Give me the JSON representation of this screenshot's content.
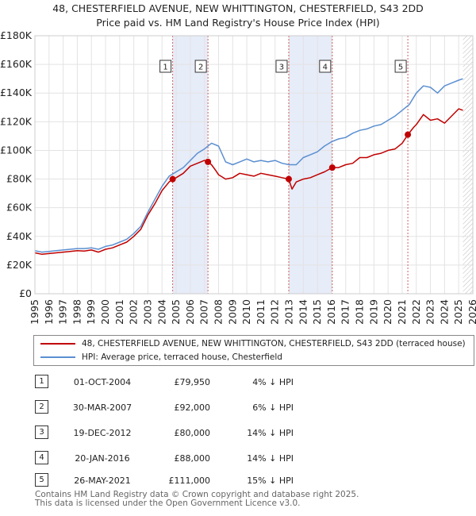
{
  "title_line1": "48, CHESTERFIELD AVENUE, NEW WHITTINGTON, CHESTERFIELD, S43 2DD",
  "title_line2": "Price paid vs. HM Land Registry's House Price Index (HPI)",
  "colors": {
    "property": "#c00000",
    "hpi": "#5b8fd1",
    "highlight": "#e6ecf8",
    "marker_line": "#d06060"
  },
  "chart_data": {
    "type": "line",
    "y_tick_labels": [
      "£0",
      "£20K",
      "£40K",
      "£60K",
      "£80K",
      "£100K",
      "£120K",
      "£140K",
      "£160K",
      "£180K"
    ],
    "y_ticks": [
      0,
      20000,
      40000,
      60000,
      80000,
      100000,
      120000,
      140000,
      160000,
      180000
    ],
    "ylim": [
      0,
      180000
    ],
    "xlim": [
      1995,
      2026
    ],
    "x_ticks": [
      "1995",
      "1996",
      "1997",
      "1998",
      "1999",
      "2000",
      "2001",
      "2002",
      "2003",
      "2004",
      "2005",
      "2006",
      "2007",
      "2008",
      "2009",
      "2010",
      "2011",
      "2012",
      "2013",
      "2014",
      "2015",
      "2016",
      "2017",
      "2018",
      "2019",
      "2020",
      "2021",
      "2022",
      "2023",
      "2024",
      "2025",
      "2026"
    ],
    "shaded_ranges": [
      [
        2004.75,
        2007.25
      ],
      [
        2012.97,
        2016.05
      ]
    ],
    "hatched_from": 2025.3,
    "series": [
      {
        "name": "48, CHESTERFIELD AVENUE, NEW WHITTINGTON, CHESTERFIELD, S43 2DD (terraced house)",
        "x": [
          1995.0,
          1995.5,
          1996.0,
          1996.5,
          1997.0,
          1997.5,
          1998.0,
          1998.5,
          1999.0,
          1999.5,
          2000.0,
          2000.5,
          2001.0,
          2001.5,
          2002.0,
          2002.5,
          2003.0,
          2003.5,
          2004.0,
          2004.5,
          2004.75,
          2005.0,
          2005.5,
          2006.0,
          2006.5,
          2007.0,
          2007.25,
          2007.5,
          2007.8,
          2008.0,
          2008.5,
          2009.0,
          2009.5,
          2010.0,
          2010.5,
          2011.0,
          2011.5,
          2012.0,
          2012.5,
          2012.97,
          2013.2,
          2013.5,
          2014.0,
          2014.5,
          2015.0,
          2015.5,
          2016.05,
          2016.5,
          2017.0,
          2017.5,
          2018.0,
          2018.5,
          2019.0,
          2019.5,
          2020.0,
          2020.5,
          2021.0,
          2021.4,
          2021.8,
          2022.0,
          2022.5,
          2023.0,
          2023.5,
          2024.0,
          2024.5,
          2025.0,
          2025.3
        ],
        "values": [
          28500,
          27500,
          28000,
          28500,
          29000,
          29500,
          30000,
          29800,
          30500,
          29000,
          31000,
          32000,
          34000,
          36000,
          40000,
          45000,
          55000,
          63000,
          72000,
          78000,
          79950,
          81000,
          84000,
          89000,
          91000,
          93000,
          92000,
          90000,
          86000,
          83000,
          80000,
          81000,
          84000,
          83000,
          82000,
          84000,
          83000,
          82000,
          81000,
          80000,
          73000,
          78000,
          80000,
          81000,
          83000,
          85000,
          88000,
          88000,
          90000,
          91000,
          95000,
          95000,
          97000,
          98000,
          100000,
          101000,
          105000,
          111000,
          116000,
          118000,
          125000,
          121000,
          122000,
          119000,
          124000,
          129000,
          128000
        ]
      },
      {
        "name": "HPI: Average price, terraced house, Chesterfield",
        "x": [
          1995.0,
          1995.5,
          1996.0,
          1996.5,
          1997.0,
          1997.5,
          1998.0,
          1998.5,
          1999.0,
          1999.5,
          2000.0,
          2000.5,
          2001.0,
          2001.5,
          2002.0,
          2002.5,
          2003.0,
          2003.5,
          2004.0,
          2004.5,
          2005.0,
          2005.5,
          2006.0,
          2006.5,
          2007.0,
          2007.5,
          2008.0,
          2008.5,
          2009.0,
          2009.5,
          2010.0,
          2010.5,
          2011.0,
          2011.5,
          2012.0,
          2012.5,
          2013.0,
          2013.5,
          2014.0,
          2014.5,
          2015.0,
          2015.5,
          2016.0,
          2016.5,
          2017.0,
          2017.5,
          2018.0,
          2018.5,
          2019.0,
          2019.5,
          2020.0,
          2020.5,
          2021.0,
          2021.5,
          2022.0,
          2022.5,
          2023.0,
          2023.5,
          2024.0,
          2024.5,
          2025.0,
          2025.3
        ],
        "values": [
          30000,
          29000,
          29500,
          30000,
          30500,
          31000,
          31500,
          31500,
          32000,
          31000,
          33000,
          34000,
          36000,
          38000,
          42000,
          47000,
          57000,
          66000,
          75000,
          82000,
          85000,
          88000,
          93000,
          98000,
          101000,
          105000,
          103000,
          92000,
          90000,
          92000,
          94000,
          92000,
          93000,
          92000,
          93000,
          91000,
          90000,
          90000,
          95000,
          97000,
          99000,
          103000,
          106000,
          108000,
          109000,
          112000,
          114000,
          115000,
          117000,
          118000,
          121000,
          124000,
          128000,
          132000,
          140000,
          145000,
          144000,
          140000,
          145000,
          147000,
          149000,
          150000
        ]
      }
    ],
    "sales": [
      {
        "label": "1",
        "x": 2004.75,
        "value": 79950
      },
      {
        "label": "2",
        "x": 2007.25,
        "value": 92000
      },
      {
        "label": "3",
        "x": 2012.97,
        "value": 80000
      },
      {
        "label": "4",
        "x": 2016.05,
        "value": 88000
      },
      {
        "label": "5",
        "x": 2021.4,
        "value": 111000
      }
    ]
  },
  "legend": {
    "property_label": "48, CHESTERFIELD AVENUE, NEW WHITTINGTON, CHESTERFIELD, S43 2DD (terraced house)",
    "hpi_label": "HPI: Average price, terraced house, Chesterfield"
  },
  "sales_table": [
    {
      "num": "1",
      "date": "01-OCT-2004",
      "price": "£79,950",
      "hpi": "4% ↓ HPI"
    },
    {
      "num": "2",
      "date": "30-MAR-2007",
      "price": "£92,000",
      "hpi": "6% ↓ HPI"
    },
    {
      "num": "3",
      "date": "19-DEC-2012",
      "price": "£80,000",
      "hpi": "14% ↓ HPI"
    },
    {
      "num": "4",
      "date": "20-JAN-2016",
      "price": "£88,000",
      "hpi": "14% ↓ HPI"
    },
    {
      "num": "5",
      "date": "26-MAY-2021",
      "price": "£111,000",
      "hpi": "15% ↓ HPI"
    }
  ],
  "footer": {
    "line1": "Contains HM Land Registry data © Crown copyright and database right 2025.",
    "line2": "This data is licensed under the Open Government Licence v3.0."
  }
}
